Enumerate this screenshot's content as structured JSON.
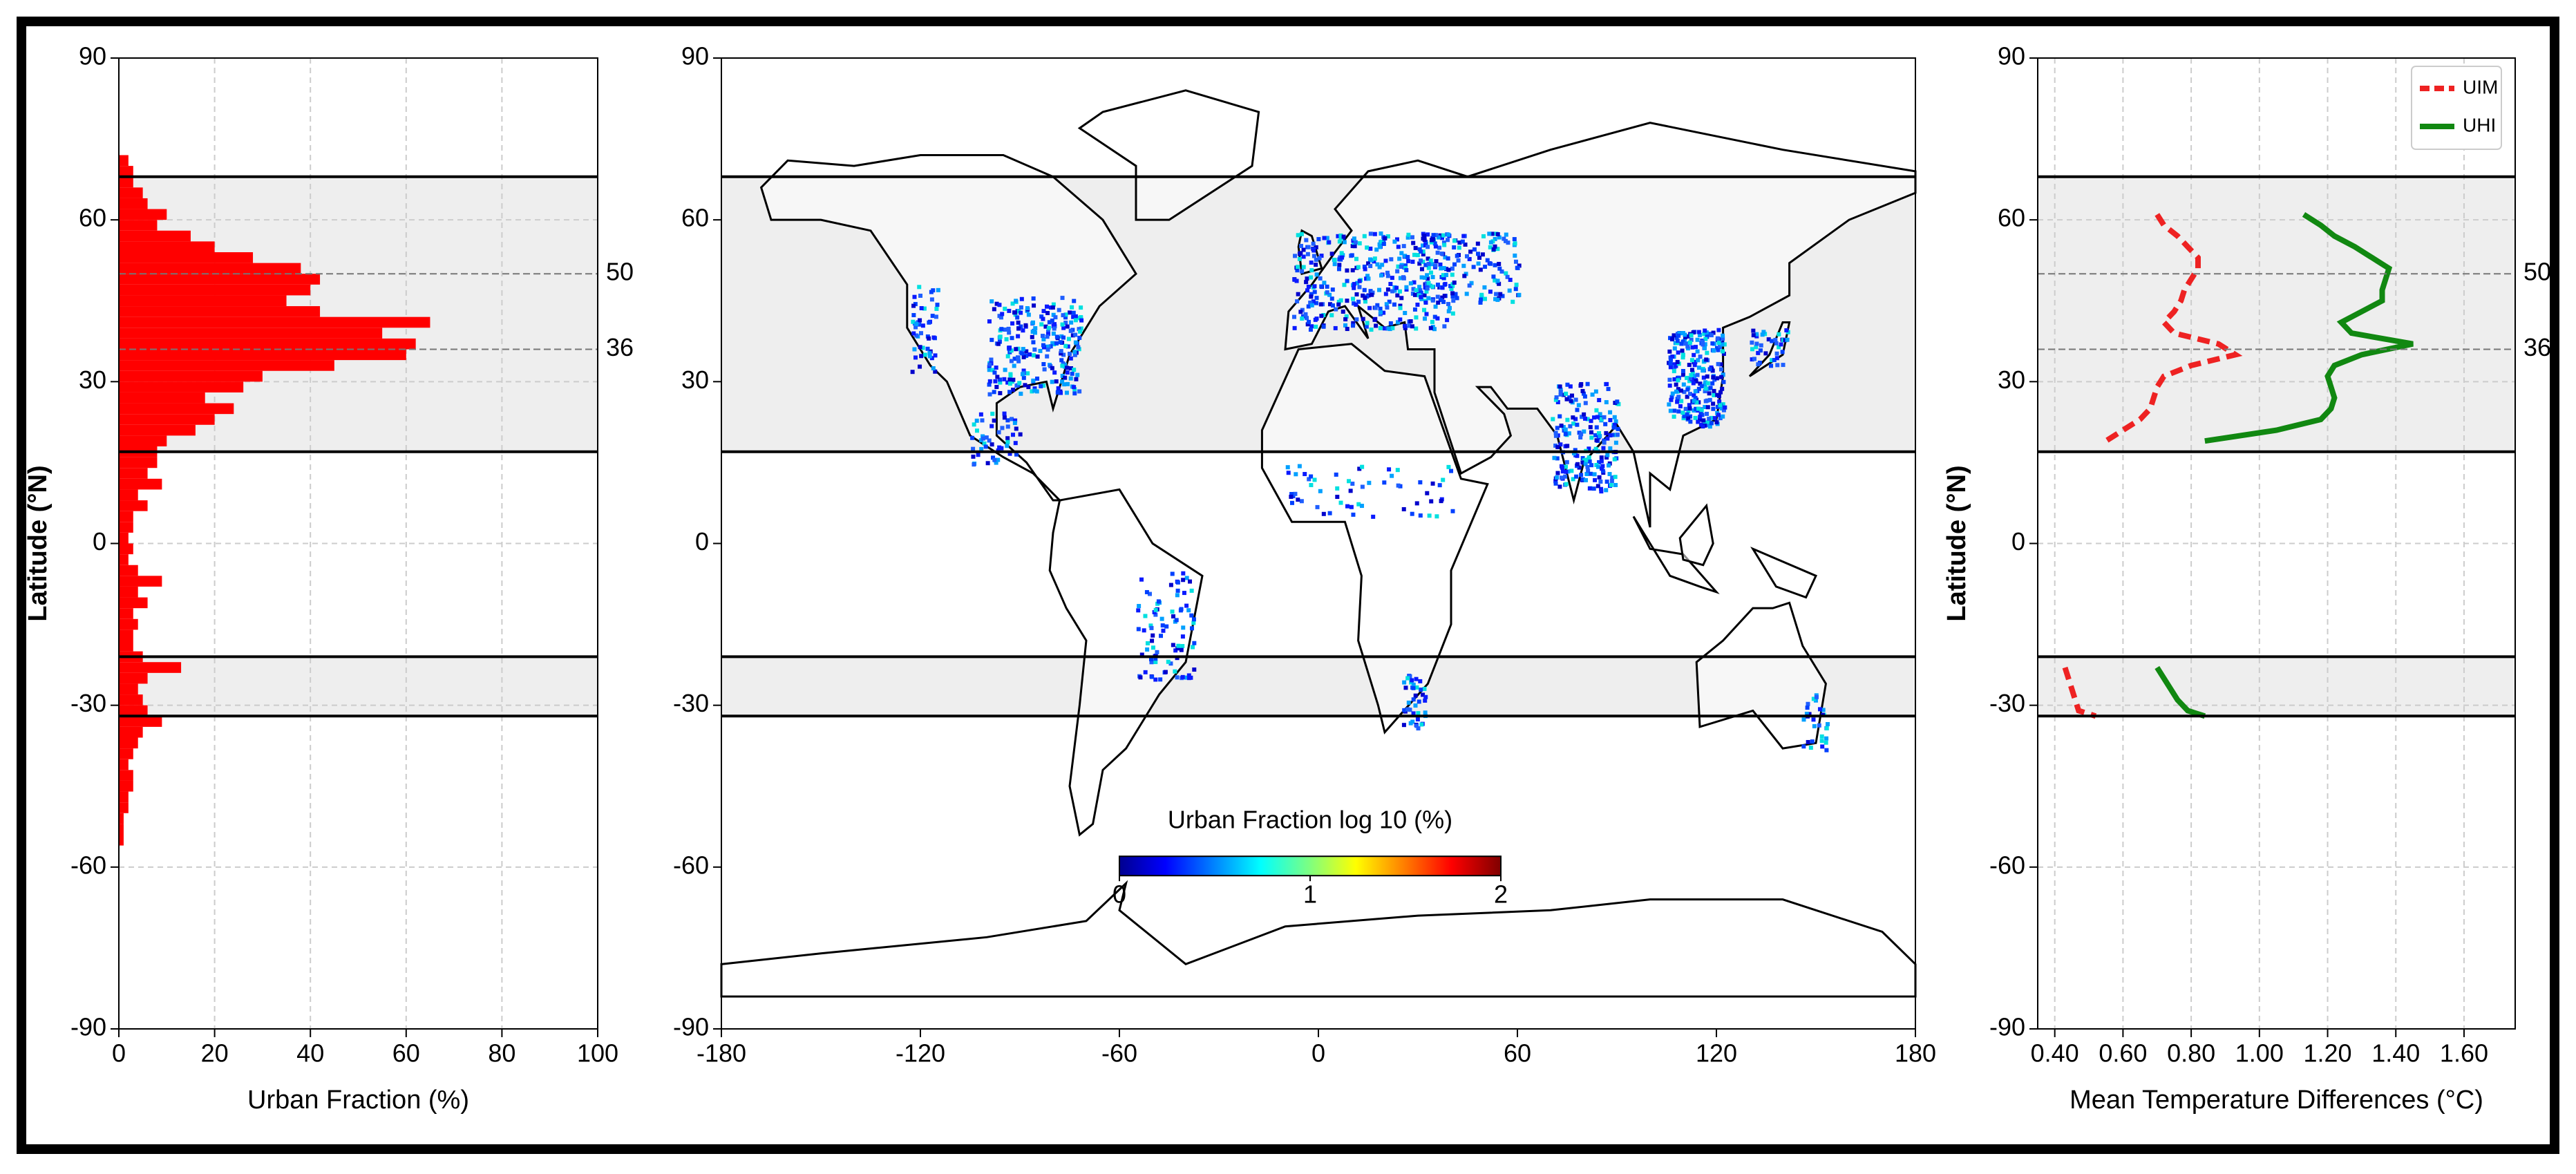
{
  "chart_data": [
    {
      "type": "histogram",
      "orientation": "horizontal",
      "color": "#ff0000",
      "bins": [
        -56,
        -54,
        -52,
        -50,
        -48,
        -46,
        -44,
        -42,
        -40,
        -38,
        -36,
        -34,
        -32,
        -30,
        -28,
        -26,
        -24,
        -22,
        -20,
        -18,
        -16,
        -14,
        -12,
        -10,
        -8,
        -6,
        -4,
        -2,
        0,
        2,
        4,
        6,
        8,
        10,
        12,
        14,
        16,
        18,
        20,
        22,
        24,
        26,
        28,
        30,
        32,
        34,
        36,
        38,
        40,
        42,
        44,
        46,
        48,
        50,
        52,
        54,
        56,
        58,
        60,
        62,
        64,
        66,
        68,
        70,
        72
      ],
      "values": [
        1,
        1,
        1,
        2,
        2,
        3,
        3,
        2,
        3,
        4,
        5,
        9,
        6,
        5,
        4,
        6,
        13,
        5,
        3,
        3,
        4,
        3,
        6,
        4,
        9,
        4,
        2,
        3,
        2,
        3,
        3,
        6,
        4,
        9,
        6,
        8,
        8,
        10,
        16,
        20,
        24,
        18,
        26,
        30,
        45,
        60,
        62,
        55,
        65,
        42,
        35,
        40,
        42,
        38,
        28,
        20,
        15,
        8,
        10,
        6,
        5,
        3,
        3,
        2
      ],
      "xlim": [
        0,
        100
      ],
      "xticks": [
        0,
        20,
        40,
        60,
        80,
        100
      ],
      "ylim": [
        -90,
        90
      ],
      "yticks": [
        -90,
        -60,
        -30,
        0,
        30,
        60,
        90
      ],
      "xlabel": "Urban Fraction (%)",
      "ylabel": "Latitude (°N)",
      "grid": true,
      "bands": [
        [
          17,
          68
        ],
        [
          -32,
          -21
        ]
      ],
      "ref_lines": [
        50,
        36
      ]
    },
    {
      "type": "map",
      "xlim": [
        -180,
        180
      ],
      "xticks": [
        -180,
        -120,
        -60,
        0,
        60,
        120,
        180
      ],
      "ylim": [
        -90,
        90
      ],
      "yticks": [
        -90,
        -60,
        -30,
        0,
        30,
        60,
        90
      ],
      "bands": [
        [
          17,
          68
        ],
        [
          -32,
          -21
        ]
      ],
      "colorbar": {
        "title": "Urban Fraction log 10 (%)",
        "lim": [
          0,
          2
        ],
        "ticks": [
          0,
          1,
          2
        ]
      }
    },
    {
      "type": "line",
      "y": [
        61,
        59,
        57,
        55,
        53,
        51,
        49,
        47,
        45,
        43,
        41,
        39,
        37,
        35,
        33,
        31,
        29,
        27,
        25,
        23,
        21,
        19,
        null,
        -23,
        -25,
        -27,
        -29,
        -31,
        -32
      ],
      "series": [
        {
          "name": "UIM",
          "color": "#ee2222",
          "dash": true,
          "values": [
            0.7,
            0.72,
            0.76,
            0.79,
            0.82,
            0.82,
            0.8,
            0.78,
            0.77,
            0.75,
            0.72,
            0.75,
            0.88,
            0.93,
            0.8,
            0.72,
            0.7,
            0.69,
            0.68,
            0.65,
            0.6,
            0.55,
            null,
            0.43,
            0.44,
            0.45,
            0.46,
            0.47,
            0.52
          ]
        },
        {
          "name": "UHI",
          "color": "#118811",
          "dash": false,
          "values": [
            1.13,
            1.18,
            1.22,
            1.28,
            1.33,
            1.38,
            1.37,
            1.36,
            1.36,
            1.3,
            1.24,
            1.27,
            1.45,
            1.3,
            1.22,
            1.2,
            1.21,
            1.22,
            1.21,
            1.18,
            1.05,
            0.84,
            null,
            0.7,
            0.72,
            0.74,
            0.76,
            0.79,
            0.84
          ]
        }
      ],
      "xlim": [
        0.35,
        1.75
      ],
      "xticks": [
        {
          "value": 0.4,
          "label": "0.40"
        },
        {
          "value": 0.6,
          "label": "0.60"
        },
        {
          "value": 0.8,
          "label": "0.80"
        },
        {
          "value": 1.0,
          "label": "1.00"
        },
        {
          "value": 1.2,
          "label": "1.20"
        },
        {
          "value": 1.4,
          "label": "1.40"
        },
        {
          "value": 1.6,
          "label": "1.60"
        }
      ],
      "ylim": [
        -90,
        90
      ],
      "yticks": [
        -90,
        -60,
        -30,
        0,
        30,
        60,
        90
      ],
      "xlabel": "Mean Temperature Differences (°C)",
      "ylabel": "Latitude (°N)",
      "grid": true,
      "bands": [
        [
          17,
          68
        ],
        [
          -32,
          -21
        ]
      ],
      "ref_lines": [
        50,
        36
      ],
      "legend": "upper right"
    }
  ]
}
